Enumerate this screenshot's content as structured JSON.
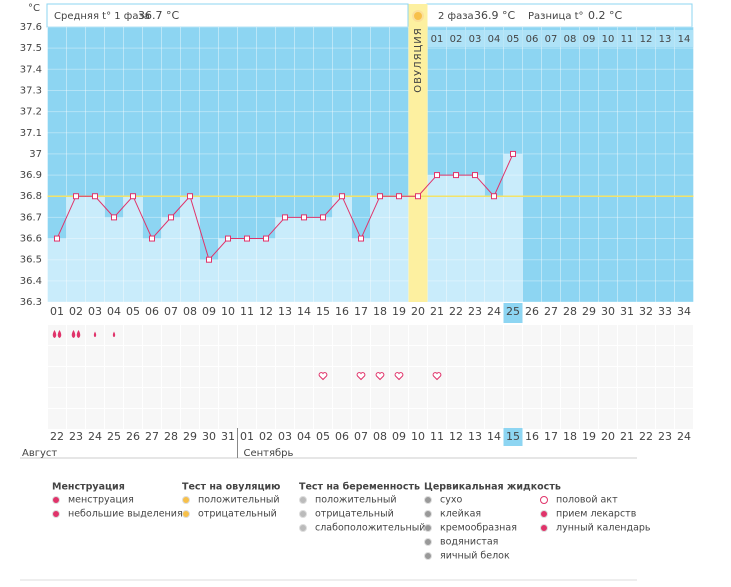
{
  "chart_data": {
    "type": "line",
    "y_unit": "°C",
    "phase1_label": "Средняя t° 1 фаза",
    "phase1_value": "36.7 °C",
    "phase2_label": "2 фаза",
    "phase2_value": "36.9 °C",
    "diff_label": "Разница t°",
    "diff_value": "0.2 °C",
    "ovulation_label": "ОВУЛЯЦИЯ",
    "ovulation_category": "20",
    "current_category": "25",
    "categories": [
      "01",
      "02",
      "03",
      "04",
      "05",
      "06",
      "07",
      "08",
      "09",
      "10",
      "11",
      "12",
      "13",
      "14",
      "15",
      "16",
      "17",
      "18",
      "19",
      "20",
      "21",
      "22",
      "23",
      "24",
      "25",
      "26",
      "27",
      "28",
      "29",
      "30",
      "31",
      "32",
      "33",
      "34"
    ],
    "values": [
      36.6,
      36.8,
      36.8,
      36.7,
      36.8,
      36.6,
      36.7,
      36.8,
      36.5,
      36.6,
      36.6,
      36.6,
      36.7,
      36.7,
      36.7,
      36.8,
      36.6,
      36.8,
      36.8,
      36.8,
      36.9,
      36.9,
      36.9,
      36.8,
      37.0,
      null,
      null,
      null,
      null,
      null,
      null,
      null,
      null,
      null
    ],
    "color": "#e0336a",
    "coverline": 36.8,
    "phase2_days": [
      "01",
      "02",
      "03",
      "04",
      "05",
      "06",
      "07",
      "08",
      "09",
      "10",
      "11",
      "12",
      "13",
      "14"
    ],
    "ylim": [
      36.3,
      37.6
    ],
    "yticks": [
      36.3,
      36.4,
      36.5,
      36.6,
      36.7,
      36.8,
      36.9,
      37,
      37.1,
      37.2,
      37.3,
      37.4,
      37.5,
      37.6
    ],
    "grid": true,
    "dates": [
      "22",
      "23",
      "24",
      "25",
      "26",
      "27",
      "28",
      "29",
      "30",
      "31",
      "01",
      "02",
      "03",
      "04",
      "05",
      "06",
      "07",
      "08",
      "09",
      "10",
      "11",
      "12",
      "13",
      "14",
      "15",
      "16",
      "17",
      "18",
      "19",
      "20",
      "21",
      "22",
      "23",
      "24"
    ],
    "date_colors": [
      "#555",
      "#555",
      "#555",
      "#d0245a",
      "#d0245a",
      "#555",
      "#555",
      "#555",
      "#555",
      "#555",
      "#d0245a",
      "#d0245a",
      "#555",
      "#555",
      "#555",
      "#555",
      "#555",
      "#d0245a",
      "#d0245a",
      "#555",
      "#555",
      "#555",
      "#555",
      "#555",
      "#fff",
      "#d0245a",
      "#555",
      "#555",
      "#555",
      "#555",
      "#555",
      "#d0245a",
      "#d0245a",
      "#555"
    ],
    "months": [
      "Август",
      "Сентябрь"
    ],
    "menstruation": [
      {
        "day": "01",
        "kind": "heavy"
      },
      {
        "day": "02",
        "kind": "heavy"
      },
      {
        "day": "03",
        "kind": "light"
      },
      {
        "day": "04",
        "kind": "light"
      }
    ],
    "intercourse_days": [
      "15",
      "17",
      "18",
      "19",
      "21"
    ],
    "legend": [
      {
        "title": "Менструация",
        "items": [
          "менструация",
          "небольшие выделения"
        ]
      },
      {
        "title": "Тест на овуляцию",
        "items": [
          "положительный",
          "отрицательный"
        ]
      },
      {
        "title": "Тест на беременность",
        "items": [
          "положительный",
          "отрицательный",
          "слабоположительный"
        ]
      },
      {
        "title": "Цервикальная жидкость",
        "items": [
          "сухо",
          "клейкая",
          "кремообразная",
          "водянистая",
          "яичный белок"
        ]
      },
      {
        "items": [
          "половой акт",
          "прием лекарств",
          "лунный календарь"
        ]
      }
    ]
  }
}
